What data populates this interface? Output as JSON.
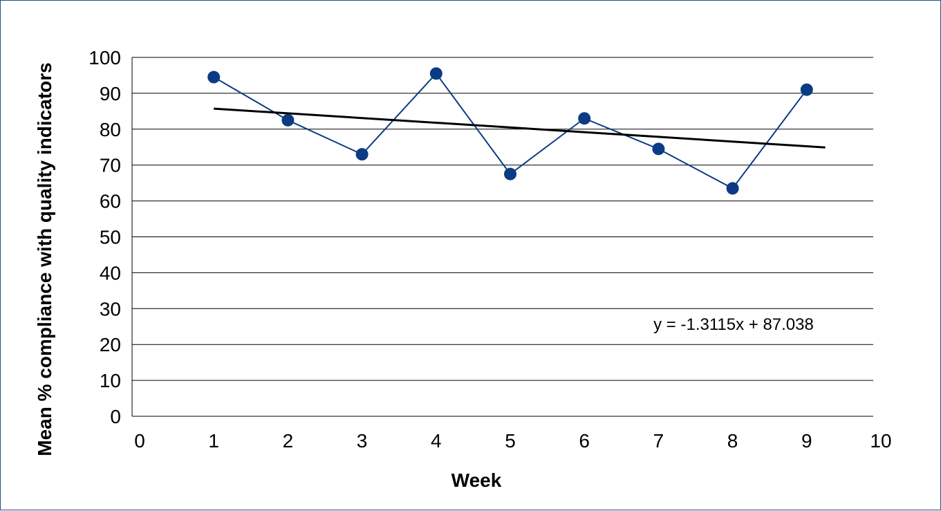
{
  "chart_data": {
    "type": "scatter",
    "title": "",
    "xlabel": "Week",
    "ylabel": "Mean % compliance with quality indicators",
    "xlim": [
      0,
      10
    ],
    "ylim": [
      0,
      100
    ],
    "x_ticks": [
      "0",
      "1",
      "2",
      "3",
      "4",
      "5",
      "6",
      "7",
      "8",
      "9",
      "10"
    ],
    "y_ticks": [
      "0",
      "10",
      "20",
      "30",
      "40",
      "50",
      "60",
      "70",
      "80",
      "90",
      "100"
    ],
    "grid": "horizontal",
    "series": [
      {
        "x": [
          1,
          2,
          3,
          4,
          5,
          6,
          7,
          8,
          9
        ],
        "y": [
          94.5,
          82.5,
          73,
          95.5,
          67.5,
          83,
          74.5,
          63.5,
          91
        ],
        "color": "#0b3b82",
        "marker": "circle",
        "line": true
      }
    ],
    "trendline": {
      "type": "linear",
      "slope": -1.3115,
      "intercept": 87.038,
      "x_range": [
        1,
        9.25
      ],
      "color": "#000000",
      "equation_label": "y = -1.3115x + 87.038"
    }
  }
}
